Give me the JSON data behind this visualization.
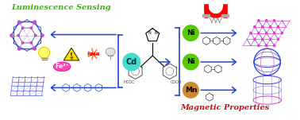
{
  "title_left": "Luminescence Sensing",
  "title_right": "Magnetic Properties",
  "title_left_color": "#33bb00",
  "title_right_color": "#cc1111",
  "cd_label": "Cd",
  "cd_color": "#44ddcc",
  "ni1_label": "Ni",
  "ni2_label": "Ni",
  "mn_label": "Mn",
  "ni_color": "#55cc00",
  "mn_color": "#cc8833",
  "fe_label": "Fe²⁺",
  "fe_color": "#ff44bb",
  "arrow_color": "#2244cc",
  "bg_color": "#ffffff",
  "hooc": "HOOC",
  "cooh": "COOH"
}
